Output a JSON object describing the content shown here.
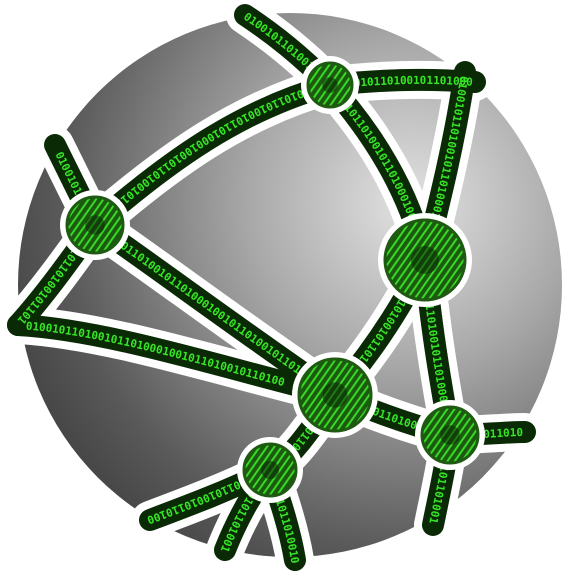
{
  "icon": {
    "name": "network-globe-icon",
    "colors": {
      "background": "#ffffff",
      "sphere_light": "#d6d6d6",
      "sphere_mid": "#8c8c8c",
      "sphere_dark": "#3c3c3c",
      "outline": "#ffffff",
      "strand_dark": "#0a2a06",
      "strand_mid": "#1e5a12",
      "binary_green": "#36e626"
    },
    "binary_glyph_sequence": "01001011010010110100"
  }
}
